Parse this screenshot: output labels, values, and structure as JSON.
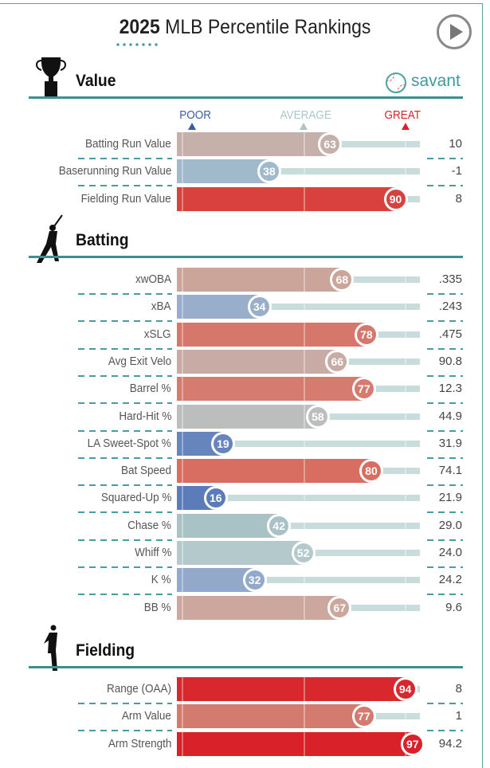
{
  "header": {
    "year": "2025",
    "title": "MLB Percentile Rankings",
    "brand": "savant"
  },
  "scale": {
    "poor": "POOR",
    "average": "AVERAGE",
    "great": "GREAT",
    "poor_color": "#3b5ba5",
    "average_color": "#a9c7c9",
    "great_color": "#d8222a"
  },
  "sections": [
    {
      "title": "Value",
      "icon": "trophy-icon",
      "rows": [
        {
          "label": "Batting Run Value",
          "pct": 63,
          "value": "10",
          "color": "#c5b0aa"
        },
        {
          "label": "Baserunning Run Value",
          "pct": 38,
          "value": "-1",
          "color": "#a1bacb"
        },
        {
          "label": "Fielding Run Value",
          "pct": 90,
          "value": "8",
          "color": "#d8413e"
        }
      ]
    },
    {
      "title": "Batting",
      "icon": "batter-icon",
      "rows": [
        {
          "label": "xwOBA",
          "pct": 68,
          "value": ".335",
          "color": "#cba49a"
        },
        {
          "label": "xBA",
          "pct": 34,
          "value": ".243",
          "color": "#98aecb"
        },
        {
          "label": "xSLG",
          "pct": 78,
          "value": ".475",
          "color": "#d6776c"
        },
        {
          "label": "Avg Exit Velo",
          "pct": 66,
          "value": "90.8",
          "color": "#c8aba5"
        },
        {
          "label": "Barrel %",
          "pct": 77,
          "value": "12.3",
          "color": "#d67b6f"
        },
        {
          "label": "Hard-Hit %",
          "pct": 58,
          "value": "44.9",
          "color": "#bcbebd"
        },
        {
          "label": "LA Sweet-Spot %",
          "pct": 19,
          "value": "31.9",
          "color": "#6685bd"
        },
        {
          "label": "Bat Speed",
          "pct": 80,
          "value": "74.1",
          "color": "#d76e61"
        },
        {
          "label": "Squared-Up %",
          "pct": 16,
          "value": "21.9",
          "color": "#5b7cb8"
        },
        {
          "label": "Chase %",
          "pct": 42,
          "value": "29.0",
          "color": "#a9c2c6"
        },
        {
          "label": "Whiff %",
          "pct": 52,
          "value": "24.0",
          "color": "#b3c9cb"
        },
        {
          "label": "K %",
          "pct": 32,
          "value": "24.2",
          "color": "#92a9cb"
        },
        {
          "label": "BB %",
          "pct": 67,
          "value": "9.6",
          "color": "#cca79d"
        }
      ]
    },
    {
      "title": "Fielding",
      "icon": "fielder-icon",
      "rows": [
        {
          "label": "Range (OAA)",
          "pct": 94,
          "value": "8",
          "color": "#d8282d"
        },
        {
          "label": "Arm Value",
          "pct": 77,
          "value": "1",
          "color": "#d47b70"
        },
        {
          "label": "Arm Strength",
          "pct": 97,
          "value": "94.2",
          "color": "#d82129"
        }
      ]
    }
  ]
}
